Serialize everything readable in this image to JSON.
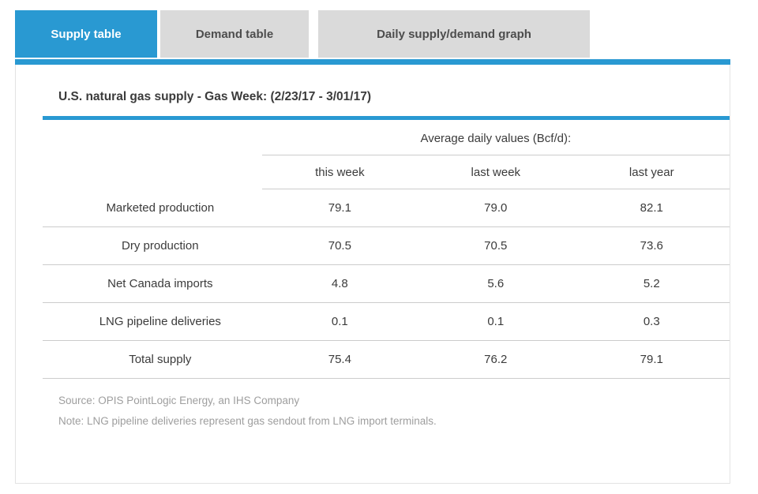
{
  "tabs": [
    {
      "label": "Supply table",
      "active": true
    },
    {
      "label": "Demand table",
      "active": false
    },
    {
      "label": "Daily supply/demand graph",
      "active": false
    }
  ],
  "panel": {
    "title": "U.S. natural gas supply - Gas Week: (2/23/17 - 3/01/17)"
  },
  "table": {
    "group_header": "Average daily values (Bcf/d):",
    "columns": [
      "this week",
      "last week",
      "last year"
    ],
    "rows": [
      {
        "label": "Marketed production",
        "values": [
          "79.1",
          "79.0",
          "82.1"
        ]
      },
      {
        "label": "Dry production",
        "values": [
          "70.5",
          "70.5",
          "73.6"
        ]
      },
      {
        "label": "Net Canada imports",
        "values": [
          "4.8",
          "5.6",
          "5.2"
        ]
      },
      {
        "label": "LNG pipeline deliveries",
        "values": [
          "0.1",
          "0.1",
          "0.3"
        ]
      },
      {
        "label": "Total supply",
        "values": [
          "75.4",
          "76.2",
          "79.1"
        ]
      }
    ]
  },
  "notes": {
    "source": "Source: OPIS PointLogic Energy, an IHS Company",
    "note": "Note: LNG pipeline deliveries represent gas sendout from LNG import terminals."
  },
  "colors": {
    "accent_blue": "#2999d2",
    "inactive_tab_bg": "#dadada",
    "separator": "#cccccc",
    "note_text": "#9e9e9e"
  }
}
